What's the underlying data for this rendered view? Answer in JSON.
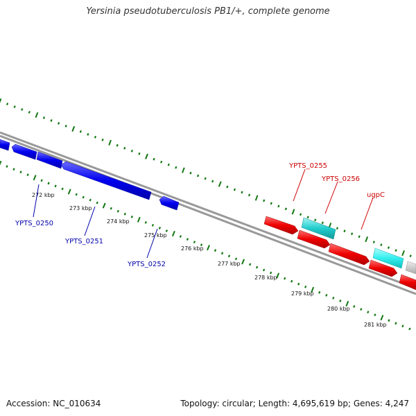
{
  "title": "Yersinia pseudotuberculosis PB1/+, complete genome",
  "footer": {
    "accession": "Accession: NC_010634",
    "summary": "Topology: circular; Length: 4,695,619 bp; Genes: 4,247"
  },
  "colors": {
    "forward_gene": "#ee0000",
    "reverse_gene": "#0000ee",
    "rna_gene": "#22cccc",
    "other_gene": "#bbbbbb",
    "tick": "#117711",
    "backbone": "#888888",
    "forward_label": "#cc0000",
    "reverse_label": "#0000aa"
  },
  "ticks": [
    "272 kbp",
    "273 kbp",
    "274 kbp",
    "275 kbp",
    "276 kbp",
    "277 kbp",
    "278 kbp",
    "279 kbp",
    "280 kbp",
    "281 kbp"
  ],
  "genes": {
    "reverse": [
      "YPTS_0250",
      "YPTS_0251",
      "YPTS_0252"
    ],
    "forward": [
      "YPTS_0255",
      "YPTS_0256",
      "ugpC"
    ]
  }
}
